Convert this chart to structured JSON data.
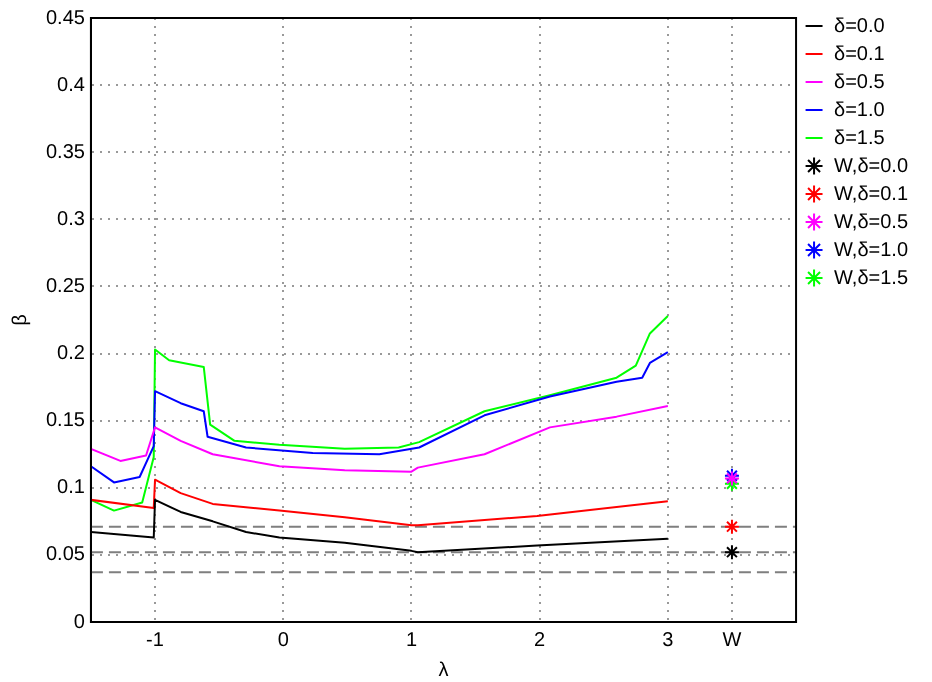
{
  "chart_data": {
    "type": "line",
    "xlabel": "λ",
    "ylabel": "β",
    "xlim": [
      -1.5,
      4
    ],
    "xticks": [
      -1,
      0,
      1,
      2,
      3,
      {
        "value": 3.5,
        "label": "W"
      }
    ],
    "ylim": [
      0,
      0.45
    ],
    "yticks": [
      0,
      0.05,
      0.1,
      0.15,
      0.2,
      0.25,
      0.3,
      0.35,
      0.4,
      0.45
    ],
    "grid": true,
    "legend": "right",
    "marker": "none",
    "line_style": "solid",
    "series": [
      {
        "name": "δ=0.0",
        "color": "#000000",
        "x": [
          -1.5,
          -1.01,
          -1,
          -0.8,
          -0.55,
          -0.29,
          -0.03,
          0.48,
          1.0,
          1.05,
          1.98,
          3.0
        ],
        "values": [
          0.067,
          0.063,
          0.091,
          0.082,
          0.075,
          0.067,
          0.063,
          0.059,
          0.053,
          0.052,
          0.057,
          0.062
        ]
      },
      {
        "name": "δ=0.1",
        "color": "#ff0000",
        "x": [
          -1.5,
          -1.01,
          -1,
          -0.8,
          -0.55,
          -0.03,
          0.48,
          1.0,
          1.05,
          1.98,
          3.0
        ],
        "values": [
          0.091,
          0.085,
          0.106,
          0.096,
          0.088,
          0.083,
          0.078,
          0.072,
          0.072,
          0.079,
          0.09
        ]
      },
      {
        "name": "δ=0.5",
        "color": "#ff00ff",
        "x": [
          -1.5,
          -1.27,
          -1.07,
          -1,
          -0.8,
          -0.55,
          -0.03,
          0.48,
          1.0,
          1.05,
          1.57,
          2.08,
          2.6,
          3.0
        ],
        "values": [
          0.129,
          0.12,
          0.124,
          0.145,
          0.135,
          0.125,
          0.116,
          0.113,
          0.112,
          0.115,
          0.125,
          0.145,
          0.153,
          0.161
        ]
      },
      {
        "name": "δ=1.0",
        "color": "#0000ff",
        "x": [
          -1.5,
          -1.32,
          -1.12,
          -1.01,
          -1,
          -0.8,
          -0.62,
          -0.59,
          -0.29,
          0.23,
          0.75,
          1.06,
          1.57,
          2.08,
          2.6,
          2.8,
          2.86,
          3.0
        ],
        "values": [
          0.116,
          0.104,
          0.108,
          0.131,
          0.172,
          0.163,
          0.157,
          0.138,
          0.13,
          0.126,
          0.125,
          0.13,
          0.154,
          0.168,
          0.179,
          0.182,
          0.193,
          0.201
        ]
      },
      {
        "name": "δ=1.5",
        "color": "#00ff00",
        "x": [
          -1.5,
          -1.32,
          -1.1,
          -1.01,
          -1,
          -0.89,
          -0.62,
          -0.57,
          -0.38,
          -0.03,
          0.48,
          0.9,
          1.06,
          1.57,
          2.08,
          2.6,
          2.75,
          2.86,
          3.0
        ],
        "values": [
          0.091,
          0.083,
          0.089,
          0.123,
          0.203,
          0.195,
          0.19,
          0.147,
          0.135,
          0.132,
          0.129,
          0.13,
          0.134,
          0.157,
          0.169,
          0.182,
          0.191,
          0.215,
          0.228
        ]
      },
      {
        "name": "W,δ=0.0",
        "type": "scatter",
        "marker": "cross",
        "color": "#000000",
        "x": [
          3.5
        ],
        "values": [
          0.052
        ]
      },
      {
        "name": "W,δ=0.1",
        "type": "scatter",
        "marker": "cross",
        "color": "#ff0000",
        "x": [
          3.5
        ],
        "values": [
          0.071
        ]
      },
      {
        "name": "W,δ=0.5",
        "type": "scatter",
        "marker": "cross",
        "color": "#ff00ff",
        "x": [
          3.5
        ],
        "values": [
          0.107
        ]
      },
      {
        "name": "W,δ=1.0",
        "type": "scatter",
        "marker": "cross",
        "color": "#0000ff",
        "x": [
          3.5
        ],
        "values": [
          0.109
        ]
      },
      {
        "name": "W,δ=1.5",
        "type": "scatter",
        "marker": "cross",
        "color": "#00ff00",
        "x": [
          3.5
        ],
        "values": [
          0.103
        ]
      }
    ],
    "ref_lines": [
      {
        "axis": "y",
        "value": 0.071,
        "color": "#7f7f7f",
        "line_style": "dashed"
      },
      {
        "axis": "y",
        "value": 0.052,
        "color": "#7f7f7f",
        "line_style": "dashed"
      },
      {
        "axis": "y",
        "value": 0.037,
        "color": "#7f7f7f",
        "line_style": "dashed"
      }
    ]
  }
}
